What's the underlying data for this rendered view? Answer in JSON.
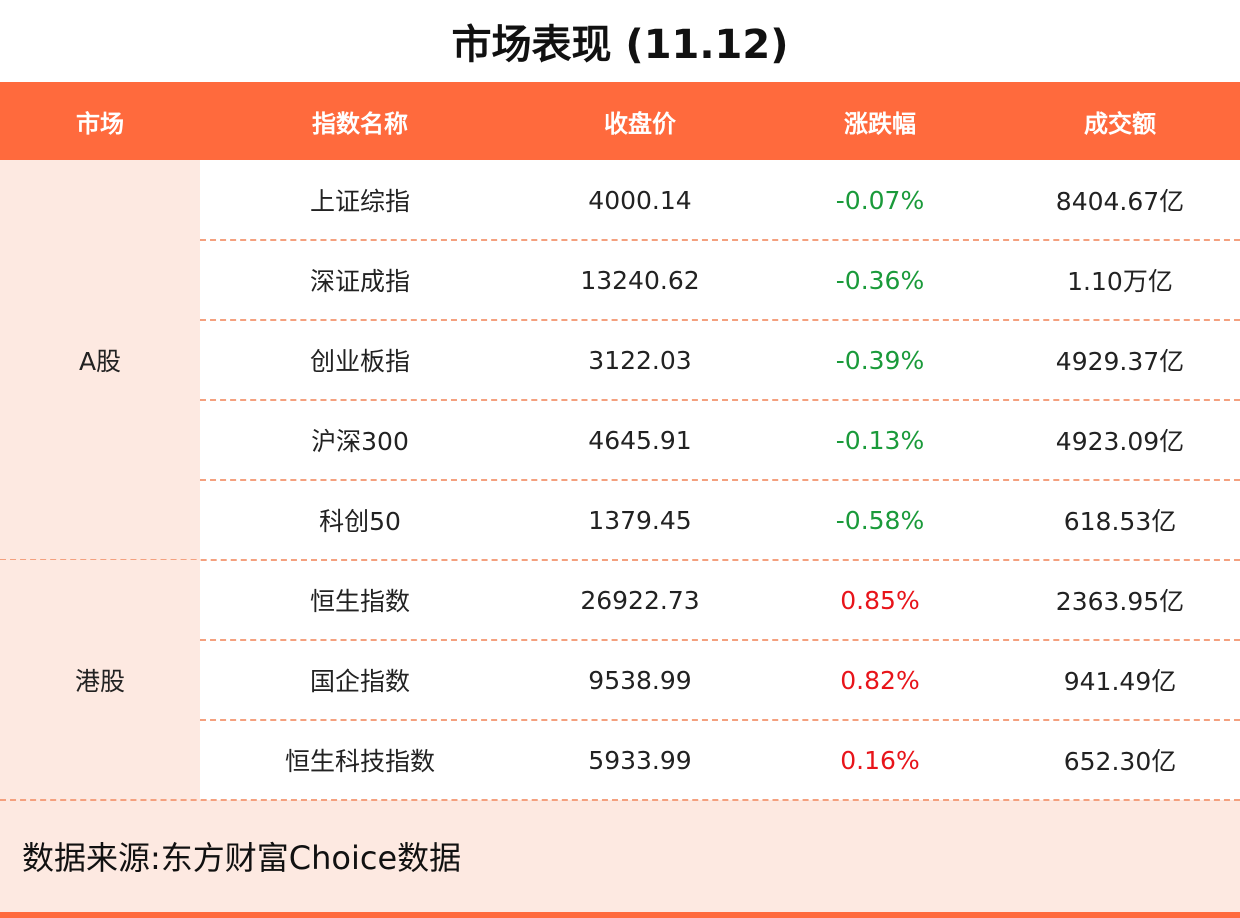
{
  "header": {
    "title": "市场表现 (11.12)"
  },
  "table": {
    "columns": [
      "市场",
      "指数名称",
      "收盘价",
      "涨跌幅",
      "成交额"
    ],
    "groups": [
      {
        "market": "A股",
        "rows": [
          [
            "上证综指",
            "4000.14",
            "-0.07%",
            "8404.67亿"
          ],
          [
            "深证成指",
            "13240.62",
            "-0.36%",
            "1.10万亿"
          ],
          [
            "创业板指",
            "3122.03",
            "-0.39%",
            "4929.37亿"
          ],
          [
            "沪深300",
            "4645.91",
            "-0.13%",
            "4923.09亿"
          ],
          [
            "科创50",
            "1379.45",
            "-0.58%",
            "618.53亿"
          ]
        ]
      },
      {
        "market": "港股",
        "rows": [
          [
            "恒生指数",
            "26922.73",
            "0.85%",
            "2363.95亿"
          ],
          [
            "国企指数",
            "9538.99",
            "0.82%",
            "941.49亿"
          ],
          [
            "恒生科技指数",
            "5933.99",
            "0.16%",
            "652.30亿"
          ]
        ]
      }
    ]
  },
  "footer": {
    "source": "数据来源:东方财富Choice数据"
  }
}
